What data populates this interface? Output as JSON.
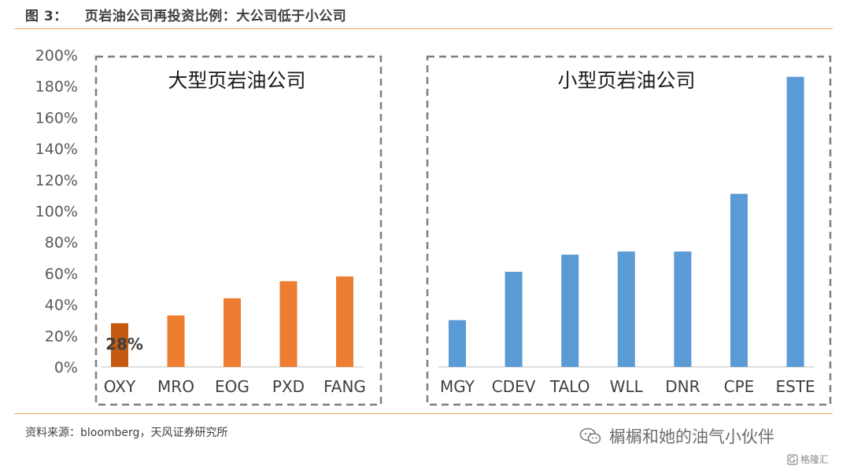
{
  "figure": {
    "number": "图 3：",
    "title": "页岩油公司再投资比例：大公司低于小公司"
  },
  "chart_data": {
    "type": "bar",
    "yticks": [
      "0%",
      "20%",
      "40%",
      "60%",
      "80%",
      "100%",
      "120%",
      "140%",
      "160%",
      "180%",
      "200%"
    ],
    "ylim": [
      0,
      200
    ],
    "groups": [
      {
        "label": "大型页岩油公司",
        "categories": [
          "OXY",
          "MRO",
          "EOG",
          "PXD",
          "FANG"
        ],
        "values": [
          28,
          33,
          44,
          55,
          58
        ],
        "color": "#ed7d31",
        "highlight_index": 0,
        "highlight_color": "#c55a11",
        "highlight_label": "28%"
      },
      {
        "label": "小型页岩油公司",
        "categories": [
          "MGY",
          "CDEV",
          "TALO",
          "WLL",
          "DNR",
          "CPE",
          "ESTE"
        ],
        "values": [
          30,
          61,
          72,
          74,
          74,
          111,
          186
        ],
        "color": "#5b9bd5"
      }
    ]
  },
  "source": "资料来源：bloomberg，天风证券研究所",
  "watermark": "榍榍和她的油气小伙伴",
  "platform": "格隆汇",
  "icons": [
    "wechat-icon",
    "gelonghui-logo-icon"
  ]
}
